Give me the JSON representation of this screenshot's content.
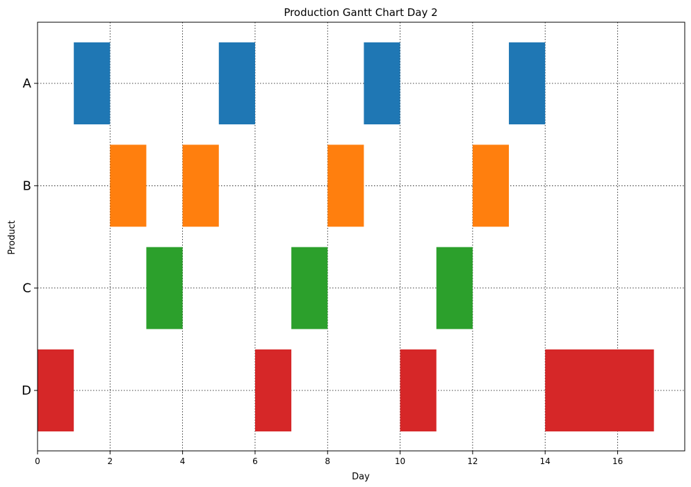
{
  "chart_data": {
    "type": "gantt",
    "title": "Production Gantt Chart Day 2",
    "xlabel": "Day",
    "ylabel": "Product",
    "xlim": [
      0,
      17.85
    ],
    "x_ticks": [
      0,
      2,
      4,
      6,
      8,
      10,
      12,
      14,
      16
    ],
    "categories": [
      "A",
      "B",
      "C",
      "D"
    ],
    "grid": true,
    "series": [
      {
        "category": "A",
        "color": "#1f77b4",
        "tasks": [
          {
            "start": 1,
            "end": 2
          },
          {
            "start": 5,
            "end": 6
          },
          {
            "start": 9,
            "end": 10
          },
          {
            "start": 13,
            "end": 14
          }
        ]
      },
      {
        "category": "B",
        "color": "#ff7f0e",
        "tasks": [
          {
            "start": 2,
            "end": 3
          },
          {
            "start": 4,
            "end": 5
          },
          {
            "start": 8,
            "end": 9
          },
          {
            "start": 12,
            "end": 13
          }
        ]
      },
      {
        "category": "C",
        "color": "#2ca02c",
        "tasks": [
          {
            "start": 3,
            "end": 4
          },
          {
            "start": 7,
            "end": 8
          },
          {
            "start": 11,
            "end": 12
          }
        ]
      },
      {
        "category": "D",
        "color": "#d62728",
        "tasks": [
          {
            "start": 0,
            "end": 1
          },
          {
            "start": 6,
            "end": 7
          },
          {
            "start": 10,
            "end": 11
          },
          {
            "start": 14,
            "end": 17
          }
        ]
      }
    ]
  }
}
